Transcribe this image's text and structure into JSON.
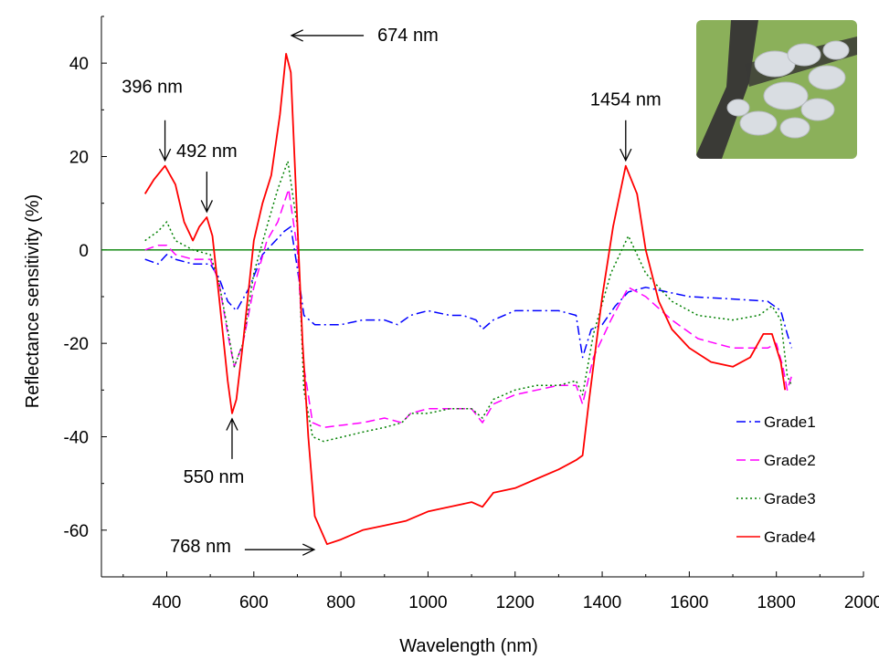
{
  "chart_data": {
    "type": "line",
    "title": "",
    "xlabel": "Wavelength (nm)",
    "ylabel": "Reflectance sensitivity (%)",
    "xlim": [
      250,
      2000
    ],
    "ylim": [
      -70,
      50
    ],
    "xticks": [
      400,
      600,
      800,
      1000,
      1200,
      1400,
      1600,
      1800,
      2000
    ],
    "yticks": [
      40,
      20,
      0,
      -20,
      -40,
      -60
    ],
    "grid": false,
    "legend_position": "bottom-right",
    "zero_line_color": "#008000",
    "series": [
      {
        "name": "Grade1",
        "color": "#0000ff",
        "dash": "dashdot",
        "points": [
          [
            350,
            -2
          ],
          [
            380,
            -3
          ],
          [
            400,
            -1
          ],
          [
            420,
            -2
          ],
          [
            460,
            -3
          ],
          [
            500,
            -3
          ],
          [
            520,
            -6
          ],
          [
            540,
            -11
          ],
          [
            560,
            -13
          ],
          [
            590,
            -8
          ],
          [
            620,
            -1
          ],
          [
            650,
            2
          ],
          [
            670,
            4
          ],
          [
            685,
            5
          ],
          [
            700,
            -4
          ],
          [
            715,
            -14
          ],
          [
            740,
            -16
          ],
          [
            800,
            -16
          ],
          [
            850,
            -15
          ],
          [
            900,
            -15
          ],
          [
            930,
            -16
          ],
          [
            960,
            -14
          ],
          [
            1000,
            -13
          ],
          [
            1050,
            -14
          ],
          [
            1080,
            -14
          ],
          [
            1110,
            -15
          ],
          [
            1125,
            -17
          ],
          [
            1150,
            -15
          ],
          [
            1200,
            -13
          ],
          [
            1250,
            -13
          ],
          [
            1300,
            -13
          ],
          [
            1340,
            -14
          ],
          [
            1355,
            -23
          ],
          [
            1375,
            -17
          ],
          [
            1400,
            -16
          ],
          [
            1430,
            -12
          ],
          [
            1460,
            -9
          ],
          [
            1500,
            -8
          ],
          [
            1600,
            -10
          ],
          [
            1700,
            -10.5
          ],
          [
            1780,
            -11
          ],
          [
            1810,
            -13
          ],
          [
            1825,
            -18
          ],
          [
            1835,
            -21
          ]
        ]
      },
      {
        "name": "Grade2",
        "color": "#ff00ff",
        "dash": "dashed",
        "points": [
          [
            350,
            0
          ],
          [
            380,
            1
          ],
          [
            400,
            1
          ],
          [
            420,
            -1
          ],
          [
            460,
            -2
          ],
          [
            500,
            -2
          ],
          [
            520,
            -7
          ],
          [
            540,
            -18
          ],
          [
            555,
            -25
          ],
          [
            575,
            -20
          ],
          [
            600,
            -8
          ],
          [
            630,
            2
          ],
          [
            655,
            6
          ],
          [
            680,
            13
          ],
          [
            700,
            0
          ],
          [
            715,
            -25
          ],
          [
            735,
            -37
          ],
          [
            760,
            -38
          ],
          [
            850,
            -37
          ],
          [
            900,
            -36
          ],
          [
            940,
            -37
          ],
          [
            960,
            -35
          ],
          [
            1000,
            -34
          ],
          [
            1050,
            -34
          ],
          [
            1100,
            -34
          ],
          [
            1125,
            -37
          ],
          [
            1150,
            -33
          ],
          [
            1200,
            -31
          ],
          [
            1250,
            -30
          ],
          [
            1300,
            -29
          ],
          [
            1340,
            -29
          ],
          [
            1355,
            -33
          ],
          [
            1380,
            -23
          ],
          [
            1420,
            -15
          ],
          [
            1460,
            -8
          ],
          [
            1500,
            -10
          ],
          [
            1560,
            -15
          ],
          [
            1620,
            -19
          ],
          [
            1700,
            -21
          ],
          [
            1780,
            -21
          ],
          [
            1800,
            -20
          ],
          [
            1815,
            -25
          ],
          [
            1825,
            -30
          ],
          [
            1835,
            -27
          ]
        ]
      },
      {
        "name": "Grade3",
        "color": "#008000",
        "dash": "dotted",
        "points": [
          [
            350,
            2
          ],
          [
            380,
            4
          ],
          [
            400,
            6
          ],
          [
            420,
            2
          ],
          [
            460,
            0
          ],
          [
            500,
            -1
          ],
          [
            520,
            -7
          ],
          [
            540,
            -17
          ],
          [
            555,
            -25
          ],
          [
            575,
            -20
          ],
          [
            600,
            -5
          ],
          [
            630,
            5
          ],
          [
            655,
            13
          ],
          [
            678,
            19
          ],
          [
            700,
            5
          ],
          [
            715,
            -30
          ],
          [
            735,
            -40
          ],
          [
            760,
            -41
          ],
          [
            850,
            -39
          ],
          [
            900,
            -38
          ],
          [
            940,
            -37
          ],
          [
            960,
            -35
          ],
          [
            1000,
            -35
          ],
          [
            1050,
            -34
          ],
          [
            1100,
            -34
          ],
          [
            1125,
            -36
          ],
          [
            1150,
            -32
          ],
          [
            1200,
            -30
          ],
          [
            1250,
            -29
          ],
          [
            1300,
            -29
          ],
          [
            1340,
            -28
          ],
          [
            1355,
            -31
          ],
          [
            1380,
            -18
          ],
          [
            1420,
            -5
          ],
          [
            1460,
            3
          ],
          [
            1500,
            -5
          ],
          [
            1560,
            -11
          ],
          [
            1620,
            -14
          ],
          [
            1700,
            -15
          ],
          [
            1760,
            -14
          ],
          [
            1790,
            -12
          ],
          [
            1810,
            -15
          ],
          [
            1825,
            -27
          ],
          [
            1835,
            -29
          ]
        ]
      },
      {
        "name": "Grade4",
        "color": "#ff0000",
        "dash": "solid",
        "points": [
          [
            350,
            12
          ],
          [
            370,
            15
          ],
          [
            396,
            18
          ],
          [
            420,
            14
          ],
          [
            440,
            6
          ],
          [
            460,
            2
          ],
          [
            475,
            5
          ],
          [
            492,
            7
          ],
          [
            505,
            3
          ],
          [
            520,
            -10
          ],
          [
            540,
            -28
          ],
          [
            550,
            -35
          ],
          [
            560,
            -32
          ],
          [
            575,
            -20
          ],
          [
            600,
            2
          ],
          [
            620,
            10
          ],
          [
            640,
            16
          ],
          [
            660,
            29
          ],
          [
            674,
            42
          ],
          [
            685,
            38
          ],
          [
            698,
            10
          ],
          [
            712,
            -20
          ],
          [
            725,
            -40
          ],
          [
            740,
            -57
          ],
          [
            768,
            -63
          ],
          [
            800,
            -62
          ],
          [
            850,
            -60
          ],
          [
            900,
            -59
          ],
          [
            950,
            -58
          ],
          [
            1000,
            -56
          ],
          [
            1050,
            -55
          ],
          [
            1100,
            -54
          ],
          [
            1125,
            -55
          ],
          [
            1150,
            -52
          ],
          [
            1200,
            -51
          ],
          [
            1250,
            -49
          ],
          [
            1300,
            -47
          ],
          [
            1340,
            -45
          ],
          [
            1355,
            -44
          ],
          [
            1370,
            -32
          ],
          [
            1400,
            -10
          ],
          [
            1425,
            5
          ],
          [
            1454,
            18
          ],
          [
            1480,
            12
          ],
          [
            1500,
            0
          ],
          [
            1530,
            -11
          ],
          [
            1560,
            -17
          ],
          [
            1600,
            -21
          ],
          [
            1650,
            -24
          ],
          [
            1700,
            -25
          ],
          [
            1740,
            -23
          ],
          [
            1770,
            -18
          ],
          [
            1790,
            -18
          ],
          [
            1810,
            -24
          ],
          [
            1820,
            -30
          ]
        ]
      }
    ],
    "annotations": [
      {
        "text": "396 nm",
        "x": 396,
        "y": 18,
        "arrow": "down"
      },
      {
        "text": "492 nm",
        "x": 492,
        "y": 7,
        "arrow": "down"
      },
      {
        "text": "550 nm",
        "x": 550,
        "y": -35,
        "arrow": "up"
      },
      {
        "text": "674 nm",
        "x": 674,
        "y": 42,
        "arrow": "left"
      },
      {
        "text": "768 nm",
        "x": 768,
        "y": -63,
        "arrow": "right"
      },
      {
        "text": "1454 nm",
        "x": 1454,
        "y": 18,
        "arrow": "down"
      }
    ]
  },
  "inset_photo": {
    "subject": "mealybug-infestation-photo",
    "colors": {
      "background": "#8bb05a",
      "stem": "#3a3a36",
      "insects": "#d9dde2"
    }
  }
}
